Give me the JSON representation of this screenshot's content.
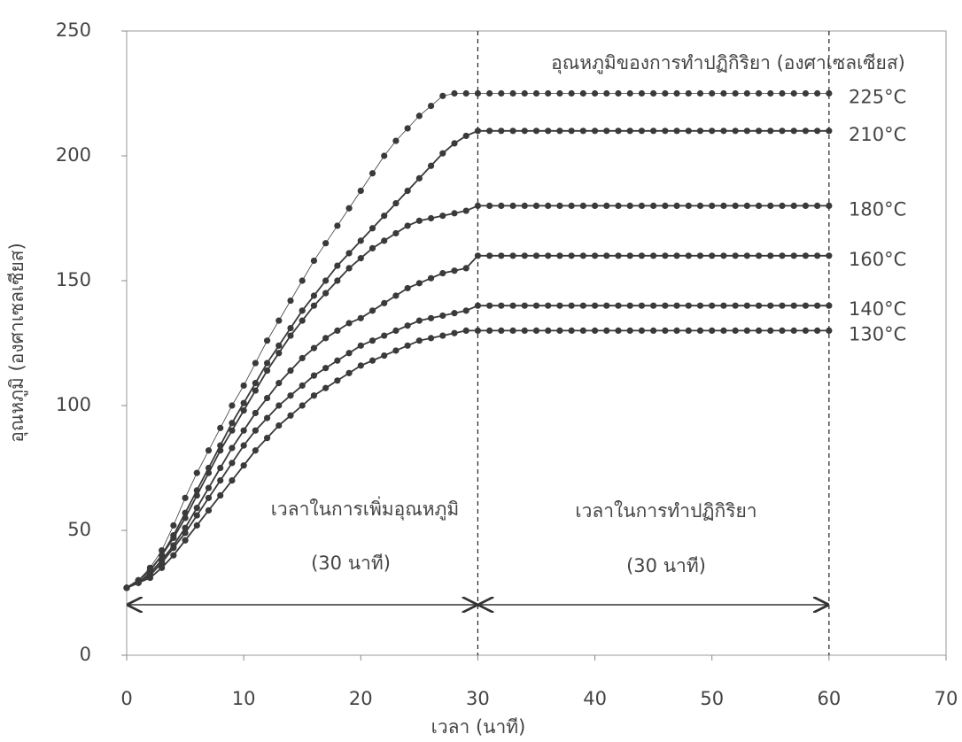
{
  "chart_data": {
    "type": "line",
    "x_label": "เวลา (นาที)",
    "y_label": "อุณหภูมิ (องศาเซลเซียส)",
    "xlim": [
      0,
      70
    ],
    "ylim": [
      0,
      250
    ],
    "xticks": [
      0,
      10,
      20,
      30,
      40,
      50,
      60,
      70
    ],
    "yticks": [
      0,
      50,
      100,
      150,
      200,
      250
    ],
    "grid": false,
    "vlines": [
      30,
      60
    ],
    "legend_title": "อุณหภูมิของการทำปฏิกิริยา (องศาเซลเซียส)",
    "annotations": [
      "เวลาในการเพิ่มอุณหภูมิ",
      "(30 นาที)",
      "เวลาในการทำปฏิกิริยา",
      "(30 นาที)"
    ],
    "x": [
      0,
      1,
      2,
      3,
      4,
      5,
      6,
      7,
      8,
      9,
      10,
      11,
      12,
      13,
      14,
      15,
      16,
      17,
      18,
      19,
      20,
      21,
      22,
      23,
      24,
      25,
      26,
      27,
      28,
      29,
      30,
      31,
      32,
      33,
      34,
      35,
      36,
      37,
      38,
      39,
      40,
      41,
      42,
      43,
      44,
      45,
      46,
      47,
      48,
      49,
      50,
      51,
      52,
      53,
      54,
      55,
      56,
      57,
      58,
      59,
      60
    ],
    "series": [
      {
        "name": "225°C",
        "color": "#3a3a3a",
        "values": [
          27,
          30,
          35,
          42,
          52,
          63,
          73,
          82,
          91,
          100,
          108,
          117,
          126,
          134,
          142,
          150,
          158,
          165,
          172,
          179,
          186,
          193,
          200,
          206,
          211,
          216,
          220,
          224,
          225,
          225,
          225,
          225,
          225,
          225,
          225,
          225,
          225,
          225,
          225,
          225,
          225,
          225,
          225,
          225,
          225,
          225,
          225,
          225,
          225,
          225,
          225,
          225,
          225,
          225,
          225,
          225,
          225,
          225,
          225,
          225,
          225
        ]
      },
      {
        "name": "210°C",
        "color": "#3a3a3a",
        "values": [
          27,
          30,
          34,
          40,
          48,
          57,
          66,
          75,
          84,
          93,
          101,
          109,
          117,
          124,
          131,
          138,
          144,
          150,
          156,
          161,
          166,
          171,
          176,
          181,
          186,
          191,
          196,
          201,
          205,
          208,
          210,
          210,
          210,
          210,
          210,
          210,
          210,
          210,
          210,
          210,
          210,
          210,
          210,
          210,
          210,
          210,
          210,
          210,
          210,
          210,
          210,
          210,
          210,
          210,
          210,
          210,
          210,
          210,
          210,
          210,
          210
        ]
      },
      {
        "name": "180°C",
        "color": "#3a3a3a",
        "values": [
          27,
          30,
          34,
          40,
          47,
          55,
          64,
          73,
          82,
          90,
          98,
          106,
          114,
          121,
          128,
          134,
          140,
          145,
          150,
          155,
          159,
          163,
          166,
          169,
          172,
          174,
          175,
          176,
          177,
          178,
          180,
          180,
          180,
          180,
          180,
          180,
          180,
          180,
          180,
          180,
          180,
          180,
          180,
          180,
          180,
          180,
          180,
          180,
          180,
          180,
          180,
          180,
          180,
          180,
          180,
          180,
          180,
          180,
          180,
          180,
          180
        ]
      },
      {
        "name": "160°C",
        "color": "#3a3a3a",
        "values": [
          27,
          29,
          33,
          38,
          44,
          51,
          59,
          67,
          75,
          83,
          90,
          97,
          103,
          109,
          114,
          119,
          123,
          127,
          130,
          133,
          135,
          138,
          141,
          144,
          147,
          149,
          151,
          153,
          154,
          155,
          160,
          160,
          160,
          160,
          160,
          160,
          160,
          160,
          160,
          160,
          160,
          160,
          160,
          160,
          160,
          160,
          160,
          160,
          160,
          160,
          160,
          160,
          160,
          160,
          160,
          160,
          160,
          160,
          160,
          160,
          160
        ]
      },
      {
        "name": "140°C",
        "color": "#3a3a3a",
        "values": [
          27,
          29,
          32,
          37,
          43,
          49,
          56,
          63,
          70,
          77,
          84,
          90,
          95,
          100,
          104,
          108,
          112,
          115,
          118,
          121,
          124,
          126,
          128,
          130,
          132,
          134,
          135,
          136,
          137,
          138,
          140,
          140,
          140,
          140,
          140,
          140,
          140,
          140,
          140,
          140,
          140,
          140,
          140,
          140,
          140,
          140,
          140,
          140,
          140,
          140,
          140,
          140,
          140,
          140,
          140,
          140,
          140,
          140,
          140,
          140,
          140
        ]
      },
      {
        "name": "130°C",
        "color": "#3a3a3a",
        "values": [
          27,
          29,
          31,
          35,
          40,
          46,
          52,
          58,
          64,
          70,
          76,
          82,
          87,
          92,
          96,
          100,
          104,
          107,
          110,
          113,
          116,
          118,
          120,
          122,
          124,
          126,
          127,
          128,
          129,
          130,
          130,
          130,
          130,
          130,
          130,
          130,
          130,
          130,
          130,
          130,
          130,
          130,
          130,
          130,
          130,
          130,
          130,
          130,
          130,
          130,
          130,
          130,
          130,
          130,
          130,
          130,
          130,
          130,
          130,
          130,
          130
        ]
      }
    ]
  }
}
